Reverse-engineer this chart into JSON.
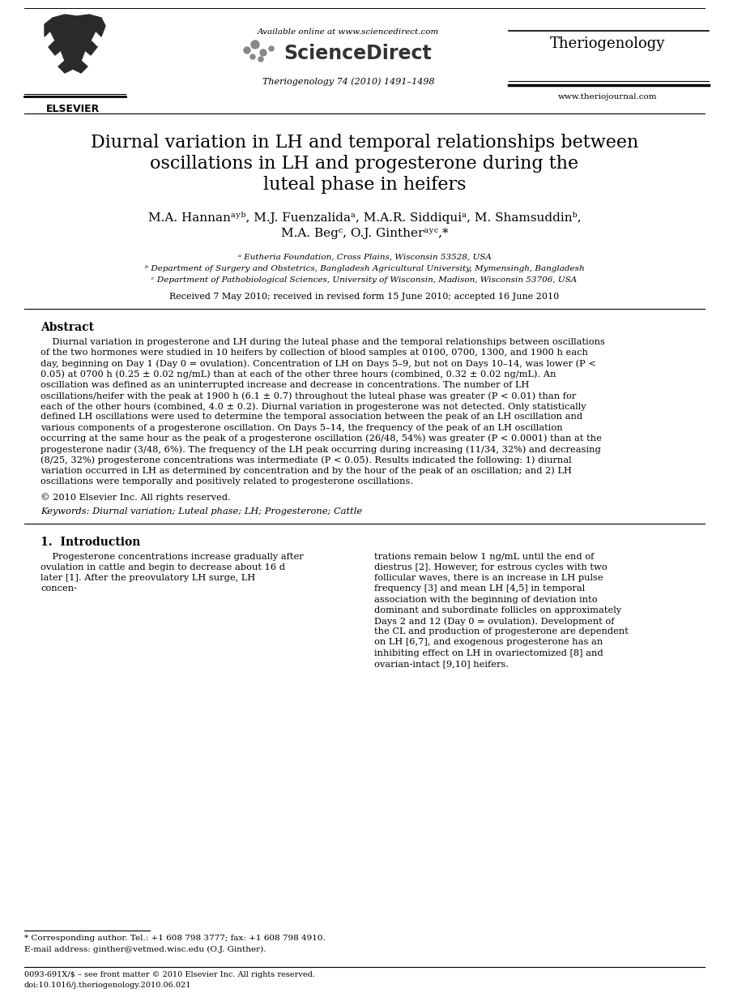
{
  "bg_color": "#ffffff",
  "title_line1": "Diurnal variation in LH and temporal relationships between",
  "title_line2": "oscillations in LH and progesterone during the",
  "title_line3": "luteal phase in heifers",
  "authors_line1": "M.A. Hannanᵃʸᵇ, M.J. Fuenzalidaᵃ, M.A.R. Siddiquiᵃ, M. Shamsuddinᵇ,",
  "authors_line2": "M.A. Begᶜ, O.J. Gintherᵃʸᶜ,*",
  "affil_a": "ᵃ Eutheria Foundation, Cross Plains, Wisconsin 53528, USA",
  "affil_b": "ᵇ Department of Surgery and Obstetrics, Bangladesh Agricultural University, Mymensingh, Bangladesh",
  "affil_c": "ᶜ Department of Pathobiological Sciences, University of Wisconsin, Madison, Wisconsin 53706, USA",
  "received": "Received 7 May 2010; received in revised form 15 June 2010; accepted 16 June 2010",
  "abstract_title": "Abstract",
  "abstract_text": "Diurnal variation in progesterone and LH during the luteal phase and the temporal relationships between oscillations of the two hormones were studied in 10 heifers by collection of blood samples at 0100, 0700, 1300, and 1900 h each day, beginning on Day 1 (Day 0 = ovulation). Concentration of LH on Days 5–9, but not on Days 10–14, was lower (P < 0.05) at 0700 h (0.25 ± 0.02 ng/mL) than at each of the other three hours (combined, 0.32 ± 0.02 ng/mL). An oscillation was defined as an uninterrupted increase and decrease in concentrations. The number of LH oscillations/heifer with the peak at 1900 h (6.1 ± 0.7) throughout the luteal phase was greater (P < 0.01) than for each of the other hours (combined, 4.0 ± 0.2). Diurnal variation in progesterone was not detected. Only statistically defined LH oscillations were used to determine the temporal association between the peak of an LH oscillation and various components of a progesterone oscillation. On Days 5–14, the frequency of the peak of an LH oscillation occurring at the same hour as the peak of a progesterone oscillation (26/48, 54%) was greater (P < 0.0001) than at the progesterone nadir (3/48, 6%). The frequency of the LH peak occurring during increasing (11/34, 32%) and decreasing (8/25, 32%) progesterone concentrations was intermediate (P < 0.05). Results indicated the following: 1) diurnal variation occurred in LH as determined by concentration and by the hour of the peak of an oscillation; and 2) LH oscillations were temporally and positively related to progesterone oscillations.",
  "copyright": "© 2010 Elsevier Inc. All rights reserved.",
  "keywords": "Keywords: Diurnal variation; Luteal phase; LH; Progesterone; Cattle",
  "section1_title": "1.  Introduction",
  "intro_col1": "Progesterone concentrations increase gradually after ovulation in cattle and begin to decrease about 16 d later [1]. After the preovulatory LH surge, LH concen-",
  "intro_col2": "trations remain below 1 ng/mL until the end of diestrus [2]. However, for estrous cycles with two follicular waves, there is an increase in LH pulse frequency [3] and mean LH [4,5] in temporal association with the beginning of deviation into dominant and subordinate follicles on approximately Days 2 and 12 (Day 0 = ovulation). Development of the CL and production of progesterone are dependent on LH [6,7], and exogenous progesterone has an inhibiting effect on LH in ovariectomized [8] and ovarian-intact [9,10] heifers.",
  "footer_note": "* Corresponding author. Tel.: +1 608 798 3777; fax: +1 608 798 4910.",
  "footer_email": "E-mail address: ginther@vetmed.wisc.edu (O.J. Ginther).",
  "footer_issn": "0093-691X/$ – see front matter © 2010 Elsevier Inc. All rights reserved.",
  "footer_doi": "doi:10.1016/j.theriogenology.2010.06.021",
  "journal_name": "Theriogenology",
  "journal_issue": "Theriogenology 74 (2010) 1491–1498",
  "available_online": "Available online at www.sciencedirect.com",
  "website": "www.theriojournal.com",
  "elsevier_text": "ELSEVIER"
}
